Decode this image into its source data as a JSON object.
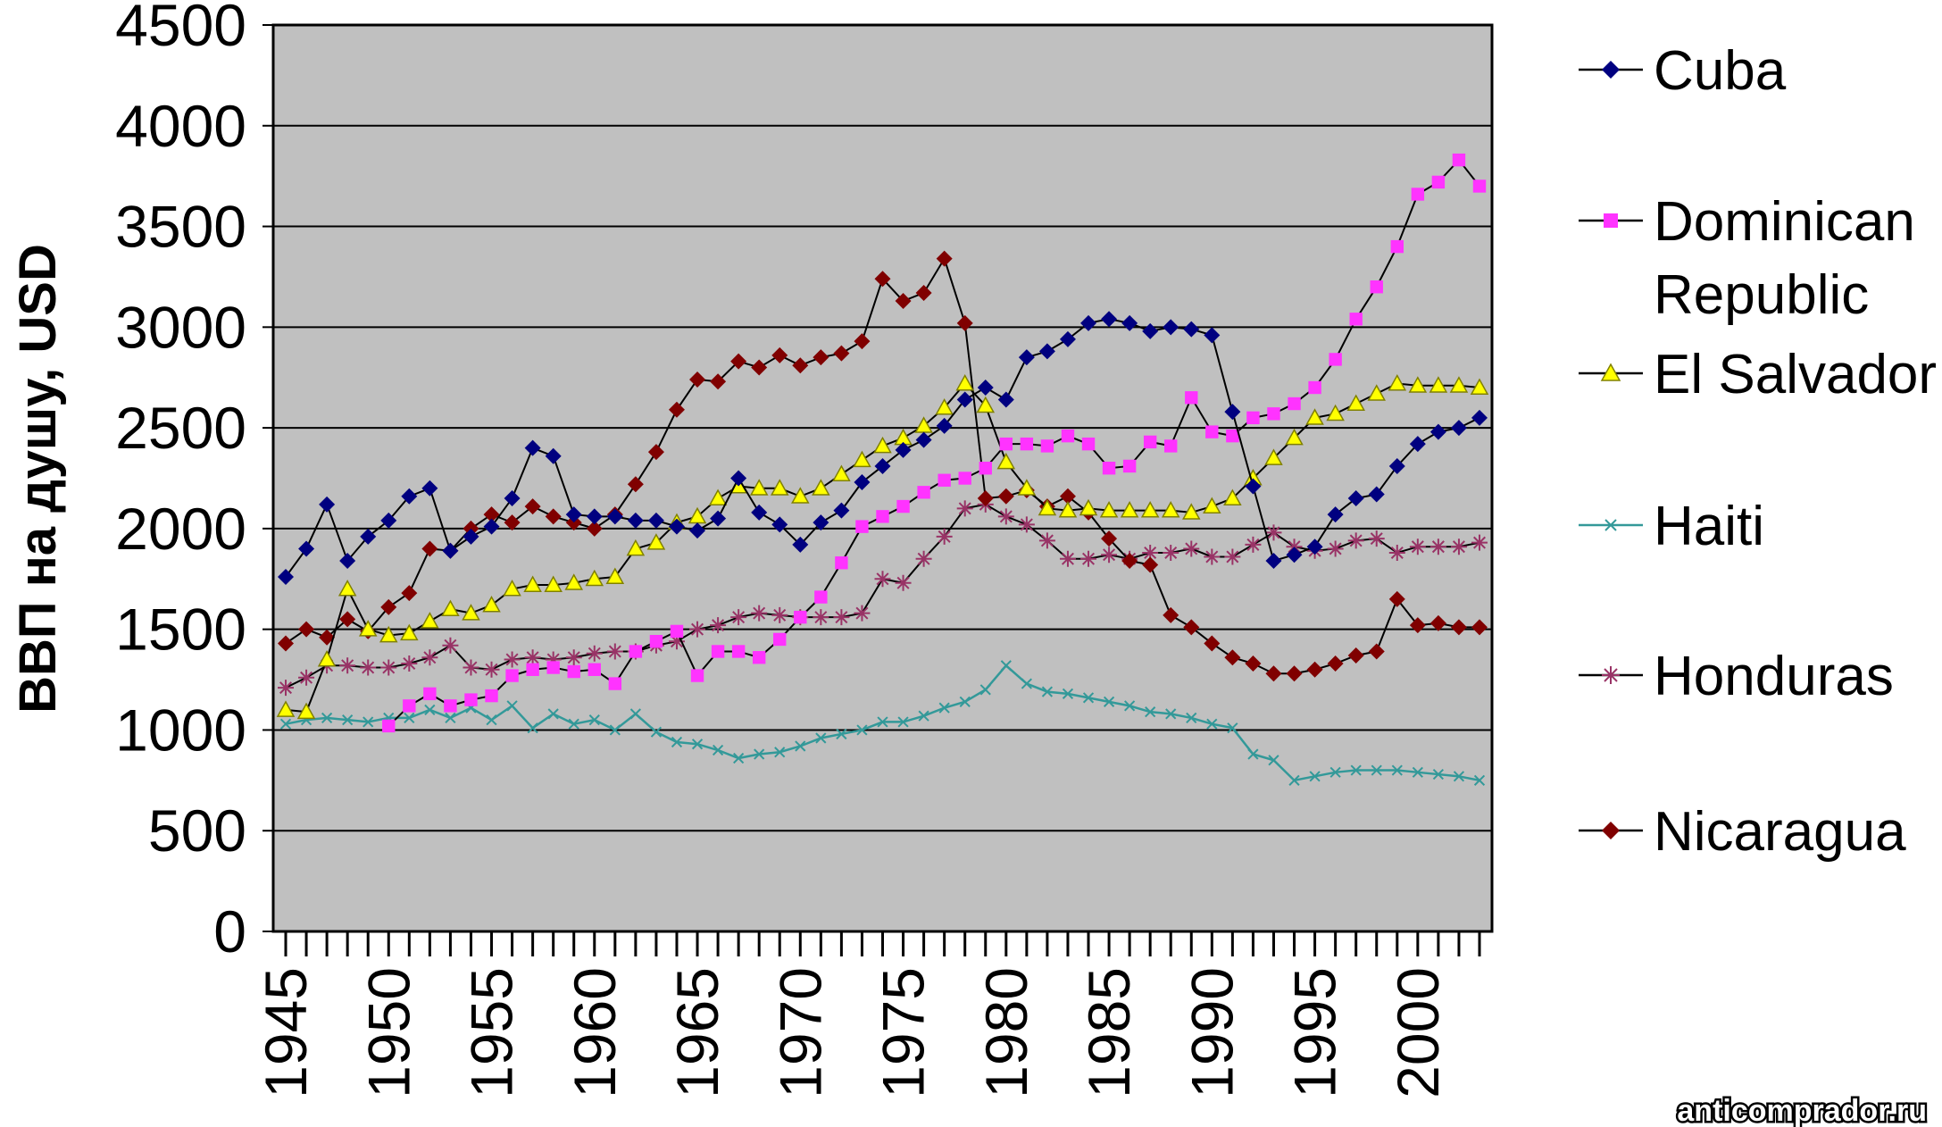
{
  "watermark": "anticomprador.ru",
  "chart_data": {
    "type": "line",
    "title": "",
    "xlabel": "",
    "ylabel": "ВВП на душу, USD",
    "xlim": [
      1945,
      2003
    ],
    "ylim": [
      0,
      4500
    ],
    "y_ticks": [
      0,
      500,
      1000,
      1500,
      2000,
      2500,
      3000,
      3500,
      4000,
      4500
    ],
    "x_tick_labels": [
      1945,
      1950,
      1955,
      1960,
      1965,
      1970,
      1975,
      1980,
      1985,
      1990,
      1995,
      2000
    ],
    "grid": "horizontal",
    "plot_background": "#c0c0c0",
    "legend_position": "right",
    "series": [
      {
        "name": "Cuba",
        "label_lines": [
          "Cuba"
        ],
        "color": "#000080",
        "marker": "diamond",
        "x": [
          1945,
          1946,
          1947,
          1948,
          1949,
          1950,
          1951,
          1952,
          1953,
          1954,
          1955,
          1956,
          1957,
          1958,
          1959,
          1960,
          1961,
          1962,
          1963,
          1964,
          1965,
          1966,
          1967,
          1968,
          1969,
          1970,
          1971,
          1972,
          1973,
          1974,
          1975,
          1976,
          1977,
          1978,
          1979,
          1980,
          1981,
          1982,
          1983,
          1984,
          1985,
          1986,
          1987,
          1988,
          1989,
          1990,
          1991,
          1992,
          1993,
          1994,
          1995,
          1996,
          1997,
          1998,
          1999,
          2000,
          2001,
          2002,
          2003
        ],
        "y": [
          1760,
          1900,
          2120,
          1840,
          1960,
          2040,
          2160,
          2200,
          1890,
          1960,
          2010,
          2150,
          2400,
          2360,
          2070,
          2060,
          2060,
          2040,
          2040,
          2010,
          1990,
          2050,
          2250,
          2080,
          2020,
          1920,
          2030,
          2090,
          2230,
          2310,
          2390,
          2440,
          2510,
          2640,
          2700,
          2640,
          2850,
          2880,
          2940,
          3020,
          3040,
          3020,
          2980,
          3000,
          2990,
          2960,
          2580,
          2210,
          1840,
          1870,
          1910,
          2070,
          2150,
          2170,
          2310,
          2420,
          2480,
          2500,
          2550
        ]
      },
      {
        "name": "Dominican Republic",
        "label_lines": [
          "Dominican",
          "Republic"
        ],
        "color": "#ff33ff",
        "marker": "square",
        "x": [
          1950,
          1951,
          1952,
          1953,
          1954,
          1955,
          1956,
          1957,
          1958,
          1959,
          1960,
          1961,
          1962,
          1963,
          1964,
          1965,
          1966,
          1967,
          1968,
          1969,
          1970,
          1971,
          1972,
          1973,
          1974,
          1975,
          1976,
          1977,
          1978,
          1979,
          1980,
          1981,
          1982,
          1983,
          1984,
          1985,
          1986,
          1987,
          1988,
          1989,
          1990,
          1991,
          1992,
          1993,
          1994,
          1995,
          1996,
          1997,
          1998,
          1999,
          2000,
          2001,
          2002,
          2003
        ],
        "y": [
          1020,
          1120,
          1180,
          1120,
          1150,
          1170,
          1270,
          1300,
          1310,
          1290,
          1300,
          1230,
          1390,
          1440,
          1490,
          1270,
          1390,
          1390,
          1360,
          1450,
          1560,
          1660,
          1830,
          2010,
          2060,
          2110,
          2180,
          2240,
          2250,
          2300,
          2420,
          2420,
          2410,
          2460,
          2420,
          2300,
          2310,
          2430,
          2410,
          2650,
          2480,
          2460,
          2550,
          2570,
          2620,
          2700,
          2840,
          3040,
          3200,
          3400,
          3660,
          3720,
          3830,
          3700
        ]
      },
      {
        "name": "El Salvador",
        "label_lines": [
          "El Salvador"
        ],
        "color": "#ffff00",
        "marker": "triangle",
        "x": [
          1945,
          1946,
          1947,
          1948,
          1949,
          1950,
          1951,
          1952,
          1953,
          1954,
          1955,
          1956,
          1957,
          1958,
          1959,
          1960,
          1961,
          1962,
          1963,
          1964,
          1965,
          1966,
          1967,
          1968,
          1969,
          1970,
          1971,
          1972,
          1973,
          1974,
          1975,
          1976,
          1977,
          1978,
          1979,
          1980,
          1981,
          1982,
          1983,
          1984,
          1985,
          1986,
          1987,
          1988,
          1989,
          1990,
          1991,
          1992,
          1993,
          1994,
          1995,
          1996,
          1997,
          1998,
          1999,
          2000,
          2001,
          2002,
          2003
        ],
        "y": [
          1100,
          1090,
          1350,
          1700,
          1500,
          1470,
          1480,
          1540,
          1600,
          1580,
          1620,
          1700,
          1720,
          1720,
          1730,
          1750,
          1760,
          1900,
          1930,
          2030,
          2060,
          2150,
          2210,
          2200,
          2200,
          2160,
          2200,
          2270,
          2340,
          2410,
          2450,
          2510,
          2600,
          2720,
          2610,
          2330,
          2200,
          2100,
          2090,
          2100,
          2090,
          2090,
          2090,
          2090,
          2080,
          2110,
          2150,
          2250,
          2350,
          2450,
          2550,
          2570,
          2620,
          2670,
          2720,
          2710,
          2710,
          2710,
          2700
        ]
      },
      {
        "name": "Haiti",
        "label_lines": [
          "Haiti"
        ],
        "color": "#339999",
        "marker": "x",
        "x": [
          1945,
          1946,
          1947,
          1948,
          1949,
          1950,
          1951,
          1952,
          1953,
          1954,
          1955,
          1956,
          1957,
          1958,
          1959,
          1960,
          1961,
          1962,
          1963,
          1964,
          1965,
          1966,
          1967,
          1968,
          1969,
          1970,
          1971,
          1972,
          1973,
          1974,
          1975,
          1976,
          1977,
          1978,
          1979,
          1980,
          1981,
          1982,
          1983,
          1984,
          1985,
          1986,
          1987,
          1988,
          1989,
          1990,
          1991,
          1992,
          1993,
          1994,
          1995,
          1996,
          1997,
          1998,
          1999,
          2000,
          2001,
          2002,
          2003
        ],
        "y": [
          1030,
          1050,
          1060,
          1050,
          1040,
          1060,
          1060,
          1100,
          1060,
          1110,
          1050,
          1120,
          1010,
          1080,
          1030,
          1050,
          1000,
          1080,
          990,
          940,
          930,
          900,
          860,
          880,
          890,
          920,
          960,
          980,
          1000,
          1040,
          1040,
          1070,
          1110,
          1140,
          1200,
          1320,
          1230,
          1190,
          1180,
          1160,
          1140,
          1120,
          1090,
          1080,
          1060,
          1030,
          1010,
          880,
          850,
          750,
          770,
          790,
          800,
          800,
          800,
          790,
          780,
          770,
          750
        ]
      },
      {
        "name": "Honduras",
        "label_lines": [
          "Honduras"
        ],
        "color": "#993366",
        "marker": "star",
        "x": [
          1945,
          1946,
          1947,
          1948,
          1949,
          1950,
          1951,
          1952,
          1953,
          1954,
          1955,
          1956,
          1957,
          1958,
          1959,
          1960,
          1961,
          1962,
          1963,
          1964,
          1965,
          1966,
          1967,
          1968,
          1969,
          1970,
          1971,
          1972,
          1973,
          1974,
          1975,
          1976,
          1977,
          1978,
          1979,
          1980,
          1981,
          1982,
          1983,
          1984,
          1985,
          1986,
          1987,
          1988,
          1989,
          1990,
          1991,
          1992,
          1993,
          1994,
          1995,
          1996,
          1997,
          1998,
          1999,
          2000,
          2001,
          2002,
          2003
        ],
        "y": [
          1210,
          1260,
          1320,
          1320,
          1310,
          1310,
          1330,
          1360,
          1420,
          1310,
          1300,
          1350,
          1360,
          1350,
          1360,
          1380,
          1390,
          1390,
          1420,
          1440,
          1500,
          1520,
          1560,
          1580,
          1570,
          1560,
          1560,
          1560,
          1580,
          1750,
          1730,
          1850,
          1960,
          2100,
          2120,
          2060,
          2020,
          1940,
          1850,
          1850,
          1870,
          1850,
          1880,
          1880,
          1900,
          1860,
          1860,
          1920,
          1980,
          1910,
          1890,
          1900,
          1940,
          1950,
          1880,
          1910,
          1910,
          1910,
          1930
        ]
      },
      {
        "name": "Nicaragua",
        "label_lines": [
          "Nicaragua"
        ],
        "color": "#800000",
        "marker": "diamond",
        "x": [
          1945,
          1946,
          1947,
          1948,
          1949,
          1950,
          1951,
          1952,
          1953,
          1954,
          1955,
          1956,
          1957,
          1958,
          1959,
          1960,
          1961,
          1962,
          1963,
          1964,
          1965,
          1966,
          1967,
          1968,
          1969,
          1970,
          1971,
          1972,
          1973,
          1974,
          1975,
          1976,
          1977,
          1978,
          1979,
          1980,
          1981,
          1982,
          1983,
          1984,
          1985,
          1986,
          1987,
          1988,
          1989,
          1990,
          1991,
          1992,
          1993,
          1994,
          1995,
          1996,
          1997,
          1998,
          1999,
          2000,
          2001,
          2002,
          2003
        ],
        "y": [
          1430,
          1500,
          1460,
          1550,
          1490,
          1610,
          1680,
          1900,
          1890,
          2000,
          2070,
          2030,
          2110,
          2060,
          2030,
          2000,
          2070,
          2220,
          2380,
          2590,
          2740,
          2730,
          2830,
          2800,
          2860,
          2810,
          2850,
          2870,
          2930,
          3240,
          3130,
          3170,
          3340,
          3020,
          2150,
          2160,
          2190,
          2110,
          2160,
          2080,
          1950,
          1840,
          1820,
          1570,
          1510,
          1430,
          1360,
          1330,
          1280,
          1280,
          1300,
          1330,
          1370,
          1390,
          1650,
          1520,
          1530,
          1510,
          1510
        ]
      }
    ]
  }
}
